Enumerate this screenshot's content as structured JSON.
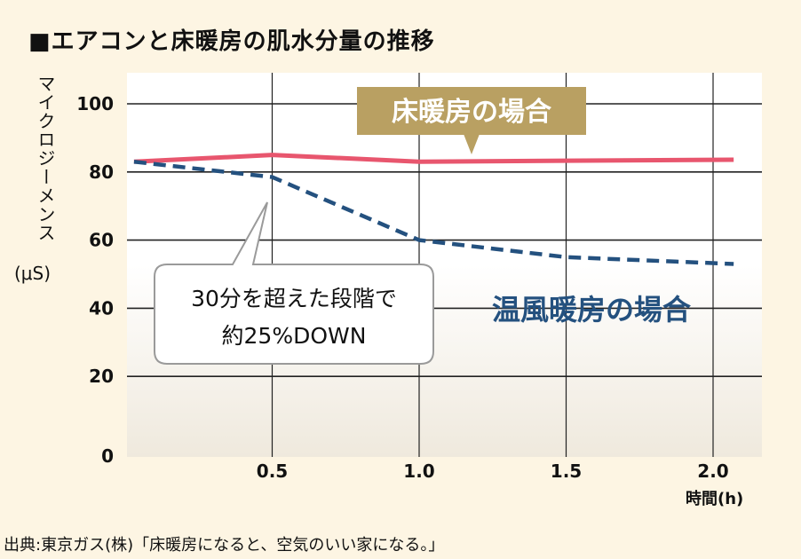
{
  "title": "■エアコンと床暖房の肌水分量の推移",
  "source": "出典:東京ガス(株)「床暖房になると、空気のいい家になる。」",
  "chart_data": {
    "type": "line",
    "title": "■エアコンと床暖房の肌水分量の推移",
    "xlabel": "時間(h)",
    "ylabel": "マイクロジーメンス",
    "yunit": "(μS)",
    "xlim": [
      0,
      2.15
    ],
    "ylim": [
      0,
      108
    ],
    "xticks": [
      {
        "v": 0.5,
        "label": "0.5"
      },
      {
        "v": 1.0,
        "label": "1.0"
      },
      {
        "v": 1.5,
        "label": "1.5"
      },
      {
        "v": 2.0,
        "label": "2.0"
      }
    ],
    "yticks": [
      {
        "v": 0,
        "label": "0"
      },
      {
        "v": 20,
        "label": "20"
      },
      {
        "v": 40,
        "label": "40"
      },
      {
        "v": 60,
        "label": "60"
      },
      {
        "v": 80,
        "label": "80"
      },
      {
        "v": 100,
        "label": "100"
      }
    ],
    "grid": true,
    "series": [
      {
        "name": "床暖房の場合",
        "color": "#e8566e",
        "style": "solid",
        "points": [
          [
            0.03,
            83
          ],
          [
            0.5,
            85
          ],
          [
            1.0,
            83
          ],
          [
            1.5,
            83.3
          ],
          [
            2.07,
            83.6
          ]
        ]
      },
      {
        "name": "温風暖房の場合",
        "color": "#24517f",
        "style": "dashed",
        "points": [
          [
            0.03,
            83
          ],
          [
            0.5,
            78.5
          ],
          [
            1.0,
            60
          ],
          [
            1.5,
            55
          ],
          [
            2.07,
            53
          ]
        ]
      }
    ],
    "annotation": {
      "line1": "30分を超えた段階で",
      "line2": "約25%DOWN"
    },
    "colors": {
      "label_box": "#b9a062",
      "background": "#fdf5e3"
    }
  }
}
